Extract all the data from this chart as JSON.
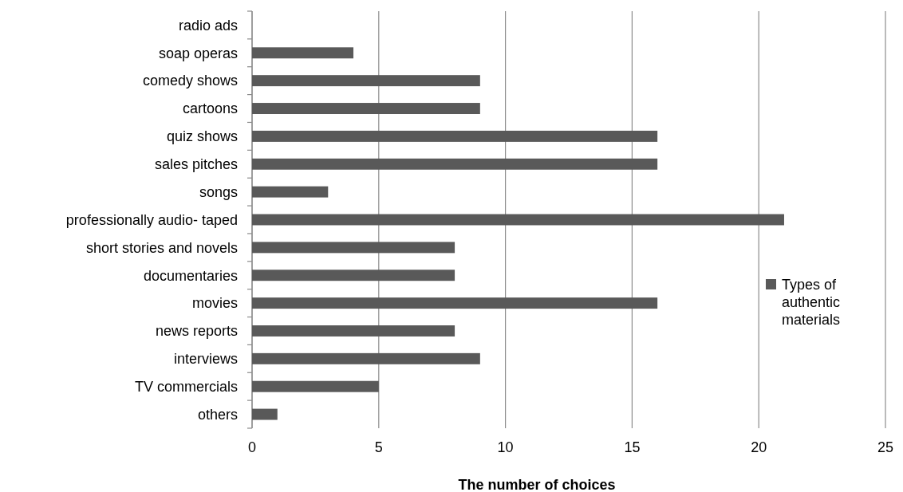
{
  "chart_data": {
    "type": "bar",
    "orientation": "horizontal",
    "xlabel": "The number of choices",
    "categories": [
      "radio ads",
      "soap operas",
      "comedy shows",
      "cartoons",
      "quiz shows",
      "sales pitches",
      "songs",
      "professionally audio- taped",
      "short stories and novels",
      "documentaries",
      "movies",
      "news reports",
      "interviews",
      "TV commercials",
      "others"
    ],
    "series": [
      {
        "name": "Types of authentic materials",
        "color": "#595959",
        "values": [
          0,
          4,
          9,
          9,
          16,
          16,
          3,
          21,
          8,
          8,
          16,
          8,
          9,
          5,
          1
        ]
      }
    ],
    "xlim": [
      0,
      25
    ],
    "xticks": [
      0,
      5,
      10,
      15,
      20,
      25
    ],
    "grid": "x",
    "legend": "right"
  }
}
